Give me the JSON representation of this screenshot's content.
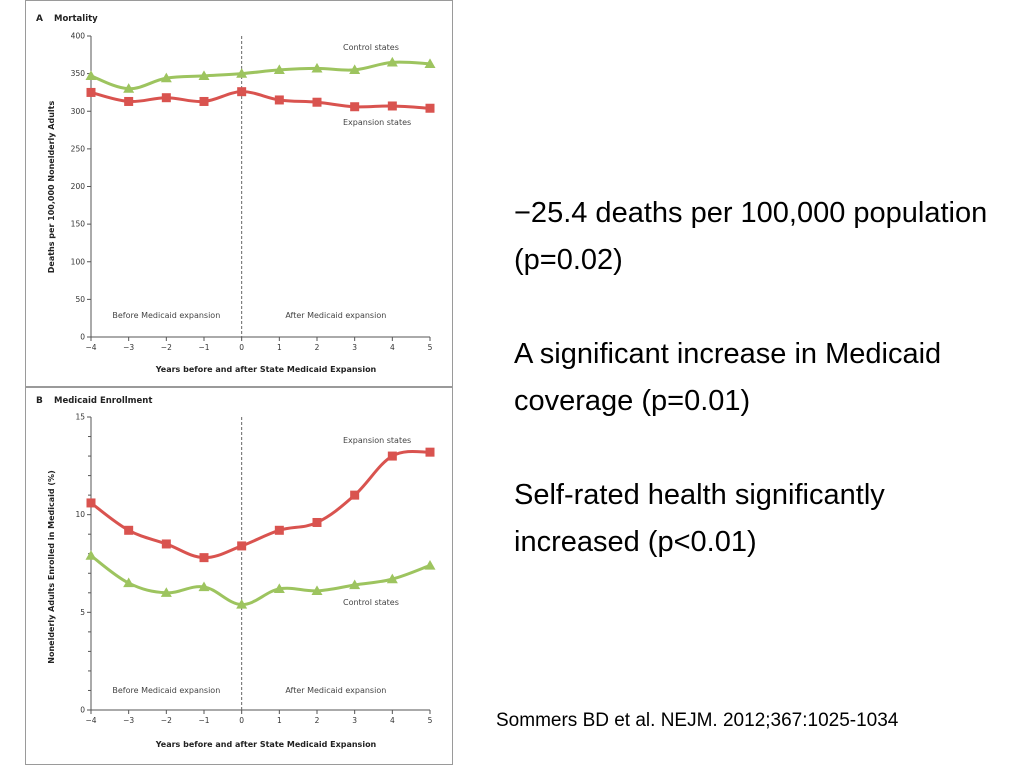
{
  "summary": {
    "items": [
      "−25.4 deaths per 100,000 population (p=0.02)",
      "A significant increase in Medicaid coverage (p=0.01)",
      "Self-rated health significantly increased (p<0.01)"
    ]
  },
  "citation": "Sommers BD et al. NEJM. 2012;367:1025-1034",
  "colors": {
    "control": "#9dc45f",
    "expansion": "#d9534f"
  },
  "chart_data": [
    {
      "type": "line",
      "panel_letter": "A",
      "title": "Mortality",
      "xlabel": "Years before and after State Medicaid Expansion",
      "ylabel": "Deaths per 100,000 Nonelderly Adults",
      "x": [
        -4,
        -3,
        -2,
        -1,
        0,
        1,
        2,
        3,
        4,
        5
      ],
      "x_tick_labels": [
        "−4",
        "−3",
        "−2",
        "−1",
        "0",
        "1",
        "2",
        "3",
        "4",
        "5"
      ],
      "xlim": [
        -4,
        5
      ],
      "ylim": [
        0,
        400
      ],
      "y_ticks": [
        0,
        50,
        100,
        150,
        200,
        250,
        300,
        350,
        400
      ],
      "y_tick_labels": [
        "0",
        "50",
        "100",
        "150",
        "200",
        "250",
        "300",
        "350",
        "400"
      ],
      "y_minor_ticks": [],
      "grid": false,
      "divider_x": 0,
      "region_labels": {
        "before": "Before Medicaid expansion",
        "after": "After Medicaid expansion"
      },
      "series": [
        {
          "name": "Control states",
          "marker": "triangle",
          "color_key": "control",
          "values": [
            347,
            330,
            344,
            347,
            350,
            355,
            357,
            355,
            365,
            363
          ]
        },
        {
          "name": "Expansion states",
          "marker": "square",
          "color_key": "expansion",
          "values": [
            325,
            313,
            318,
            313,
            326,
            315,
            312,
            306,
            307,
            304
          ]
        }
      ]
    },
    {
      "type": "line",
      "panel_letter": "B",
      "title": "Medicaid Enrollment",
      "xlabel": "Years before and after State Medicaid Expansion",
      "ylabel": "Nonelderly Adults Enrolled in Medicaid (%)",
      "x": [
        -4,
        -3,
        -2,
        -1,
        0,
        1,
        2,
        3,
        4,
        5
      ],
      "x_tick_labels": [
        "−4",
        "−3",
        "−2",
        "−1",
        "0",
        "1",
        "2",
        "3",
        "4",
        "5"
      ],
      "xlim": [
        -4,
        5
      ],
      "ylim": [
        0,
        15
      ],
      "y_ticks": [
        0,
        5,
        10,
        15
      ],
      "y_tick_labels": [
        "0",
        "5",
        "10",
        "15"
      ],
      "y_minor_ticks": [
        1,
        2,
        3,
        4,
        6,
        7,
        8,
        9,
        11,
        12,
        13,
        14
      ],
      "grid": false,
      "divider_x": 0,
      "region_labels": {
        "before": "Before Medicaid expansion",
        "after": "After Medicaid expansion"
      },
      "series": [
        {
          "name": "Expansion states",
          "marker": "square",
          "color_key": "expansion",
          "values": [
            10.6,
            9.2,
            8.5,
            7.8,
            8.4,
            9.2,
            9.6,
            11.0,
            13.0,
            13.2
          ]
        },
        {
          "name": "Control states",
          "marker": "triangle",
          "color_key": "control",
          "values": [
            7.9,
            6.5,
            6.0,
            6.3,
            5.4,
            6.2,
            6.1,
            6.4,
            6.7,
            7.4
          ]
        }
      ]
    }
  ]
}
